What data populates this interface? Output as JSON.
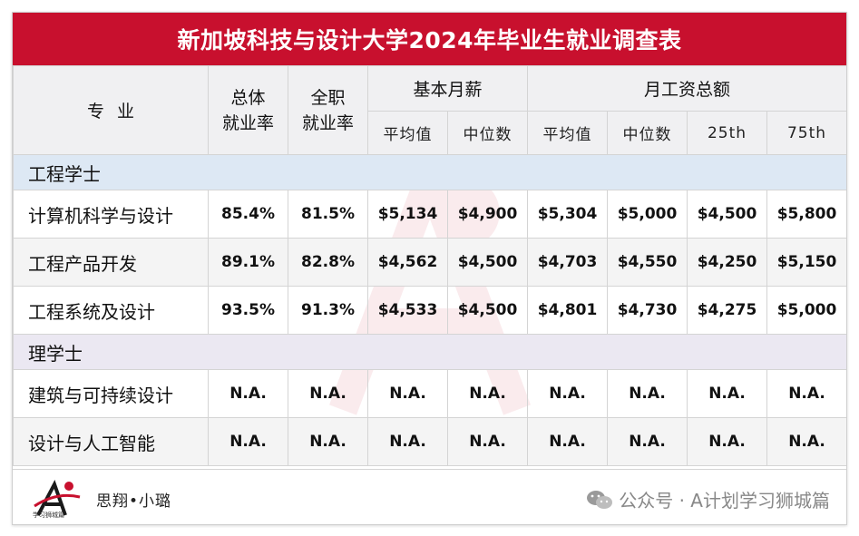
{
  "title": "新加坡科技与设计大学2024年毕业生就业调查表",
  "headers": {
    "major": "专业",
    "overall_line1": "总体",
    "overall_line2": "就业率",
    "fulltime_line1": "全职",
    "fulltime_line2": "就业率",
    "basic_salary": "基本月薪",
    "gross_salary": "月工资总额",
    "mean": "平均值",
    "median": "中位数",
    "mean2": "平均值",
    "median2": "中位数",
    "p25": "25th",
    "p75": "75th"
  },
  "sections": [
    {
      "name": "工程学士",
      "rows": [
        {
          "major": "计算机科学与设计",
          "overall": "85.4%",
          "fulltime": "81.5%",
          "basic_mean": "$5,134",
          "basic_median": "$4,900",
          "gross_mean": "$5,304",
          "gross_median": "$5,000",
          "p25": "$4,500",
          "p75": "$5,800"
        },
        {
          "major": "工程产品开发",
          "overall": "89.1%",
          "fulltime": "82.8%",
          "basic_mean": "$4,562",
          "basic_median": "$4,500",
          "gross_mean": "$4,703",
          "gross_median": "$4,550",
          "p25": "$4,250",
          "p75": "$5,150"
        },
        {
          "major": "工程系统及设计",
          "overall": "93.5%",
          "fulltime": "91.3%",
          "basic_mean": "$4,533",
          "basic_median": "$4,500",
          "gross_mean": "$4,801",
          "gross_median": "$4,730",
          "p25": "$4,275",
          "p75": "$5,000"
        }
      ]
    },
    {
      "name": "理学士",
      "rows": [
        {
          "major": "建筑与可持续设计",
          "overall": "N.A.",
          "fulltime": "N.A.",
          "basic_mean": "N.A.",
          "basic_median": "N.A.",
          "gross_mean": "N.A.",
          "gross_median": "N.A.",
          "p25": "N.A.",
          "p75": "N.A."
        },
        {
          "major": "设计与人工智能",
          "overall": "N.A.",
          "fulltime": "N.A.",
          "basic_mean": "N.A.",
          "basic_median": "N.A.",
          "gross_mean": "N.A.",
          "gross_median": "N.A.",
          "p25": "N.A.",
          "p75": "N.A."
        }
      ]
    }
  ],
  "footer": {
    "logo_caption": "学习狮城篇",
    "brand": "思翔•小璐",
    "wechat_text": "公众号 · A计划学习狮城篇"
  },
  "colors": {
    "title_bg": "#c8102e",
    "section1_bg": "#dde8f4",
    "section2_bg": "#ebe8f2"
  }
}
